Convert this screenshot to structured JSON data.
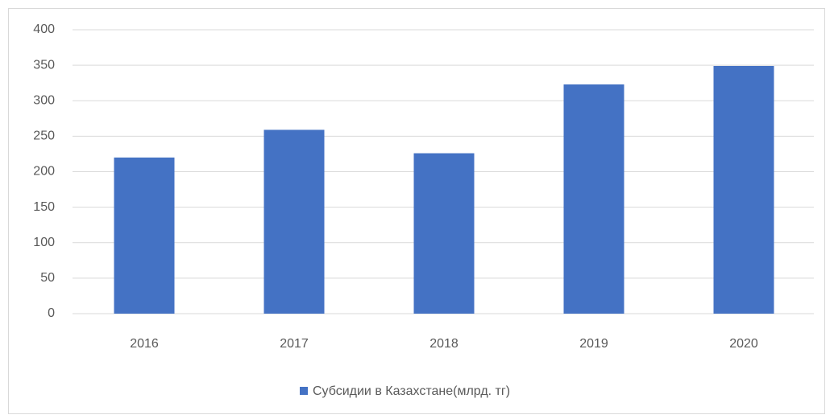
{
  "chart_data": {
    "type": "bar",
    "categories": [
      "2016",
      "2017",
      "2018",
      "2019",
      "2020"
    ],
    "series": [
      {
        "name": "Субсидии в Казахстане(млрд. тг)",
        "color": "#4472c4",
        "values": [
          220,
          259,
          226,
          323,
          349
        ]
      }
    ],
    "ylim": [
      0,
      400
    ],
    "yticks": [
      0,
      50,
      100,
      150,
      200,
      250,
      300,
      350,
      400
    ],
    "grid": true,
    "legend": "bottom"
  }
}
